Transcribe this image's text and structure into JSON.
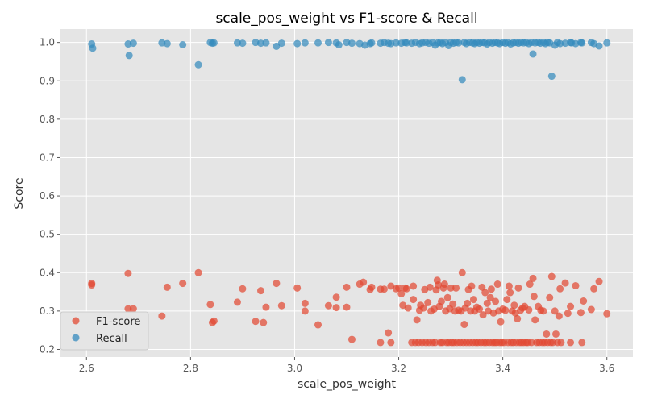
{
  "chart_data": {
    "type": "scatter",
    "title": "scale_pos_weight vs F1-score & Recall",
    "xlabel": "scale_pos_weight",
    "ylabel": "Score",
    "xlim": [
      2.55,
      3.65
    ],
    "ylim": [
      0.18,
      1.035
    ],
    "xticks": [
      "2.6",
      "2.8",
      "3.0",
      "3.2",
      "3.4",
      "3.6"
    ],
    "yticks": [
      "0.2",
      "0.3",
      "0.4",
      "0.5",
      "0.6",
      "0.7",
      "0.8",
      "0.9",
      "1.0"
    ],
    "grid": true,
    "legend_position": "lower-left",
    "colors": {
      "background": "#e5e5e5",
      "grid": "#ffffff",
      "f1": "#e24a33",
      "recall": "#348abd"
    },
    "series": [
      {
        "name": "F1-score",
        "points": [
          [
            2.61,
            0.372
          ],
          [
            2.61,
            0.368
          ],
          [
            2.68,
            0.398
          ],
          [
            2.68,
            0.306
          ],
          [
            2.69,
            0.306
          ],
          [
            2.745,
            0.287
          ],
          [
            2.755,
            0.362
          ],
          [
            2.785,
            0.372
          ],
          [
            2.815,
            0.4
          ],
          [
            2.838,
            0.317
          ],
          [
            2.842,
            0.27
          ],
          [
            2.845,
            0.274
          ],
          [
            2.89,
            0.323
          ],
          [
            2.9,
            0.358
          ],
          [
            2.925,
            0.273
          ],
          [
            2.935,
            0.353
          ],
          [
            2.94,
            0.27
          ],
          [
            2.945,
            0.31
          ],
          [
            2.965,
            0.372
          ],
          [
            2.975,
            0.314
          ],
          [
            3.005,
            0.36
          ],
          [
            3.02,
            0.32
          ],
          [
            3.02,
            0.3
          ],
          [
            3.045,
            0.264
          ],
          [
            3.065,
            0.314
          ],
          [
            3.08,
            0.336
          ],
          [
            3.08,
            0.309
          ],
          [
            3.1,
            0.362
          ],
          [
            3.1,
            0.31
          ],
          [
            3.11,
            0.226
          ],
          [
            3.125,
            0.37
          ],
          [
            3.132,
            0.375
          ],
          [
            3.145,
            0.356
          ],
          [
            3.148,
            0.362
          ],
          [
            3.165,
            0.357
          ],
          [
            3.165,
            0.218
          ],
          [
            3.172,
            0.357
          ],
          [
            3.18,
            0.243
          ],
          [
            3.185,
            0.365
          ],
          [
            3.185,
            0.218
          ],
          [
            3.195,
            0.358
          ],
          [
            3.2,
            0.36
          ],
          [
            3.205,
            0.345
          ],
          [
            3.208,
            0.315
          ],
          [
            3.212,
            0.36
          ],
          [
            3.215,
            0.358
          ],
          [
            3.218,
            0.308
          ],
          [
            3.225,
            0.218
          ],
          [
            3.228,
            0.365
          ],
          [
            3.228,
            0.33
          ],
          [
            3.232,
            0.218
          ],
          [
            3.235,
            0.277
          ],
          [
            3.238,
            0.218
          ],
          [
            3.24,
            0.302
          ],
          [
            3.242,
            0.315
          ],
          [
            3.245,
            0.218
          ],
          [
            3.248,
            0.308
          ],
          [
            3.25,
            0.356
          ],
          [
            3.252,
            0.218
          ],
          [
            3.256,
            0.322
          ],
          [
            3.258,
            0.218
          ],
          [
            3.26,
            0.362
          ],
          [
            3.262,
            0.3
          ],
          [
            3.265,
            0.218
          ],
          [
            3.268,
            0.305
          ],
          [
            3.27,
            0.218
          ],
          [
            3.272,
            0.355
          ],
          [
            3.274,
            0.38
          ],
          [
            3.276,
            0.368
          ],
          [
            3.278,
            0.312
          ],
          [
            3.28,
            0.218
          ],
          [
            3.282,
            0.325
          ],
          [
            3.284,
            0.218
          ],
          [
            3.286,
            0.36
          ],
          [
            3.288,
            0.37
          ],
          [
            3.29,
            0.3
          ],
          [
            3.292,
            0.218
          ],
          [
            3.294,
            0.335
          ],
          [
            3.296,
            0.218
          ],
          [
            3.298,
            0.306
          ],
          [
            3.3,
            0.36
          ],
          [
            3.302,
            0.218
          ],
          [
            3.304,
            0.318
          ],
          [
            3.306,
            0.218
          ],
          [
            3.308,
            0.3
          ],
          [
            3.31,
            0.36
          ],
          [
            3.312,
            0.218
          ],
          [
            3.315,
            0.302
          ],
          [
            3.318,
            0.218
          ],
          [
            3.32,
            0.3
          ],
          [
            3.322,
            0.4
          ],
          [
            3.324,
            0.218
          ],
          [
            3.326,
            0.265
          ],
          [
            3.328,
            0.308
          ],
          [
            3.33,
            0.218
          ],
          [
            3.332,
            0.32
          ],
          [
            3.334,
            0.356
          ],
          [
            3.336,
            0.218
          ],
          [
            3.338,
            0.3
          ],
          [
            3.34,
            0.365
          ],
          [
            3.342,
            0.218
          ],
          [
            3.344,
            0.33
          ],
          [
            3.346,
            0.3
          ],
          [
            3.348,
            0.218
          ],
          [
            3.35,
            0.31
          ],
          [
            3.352,
            0.218
          ],
          [
            3.355,
            0.305
          ],
          [
            3.358,
            0.218
          ],
          [
            3.36,
            0.362
          ],
          [
            3.362,
            0.29
          ],
          [
            3.364,
            0.218
          ],
          [
            3.366,
            0.348
          ],
          [
            3.368,
            0.218
          ],
          [
            3.37,
            0.32
          ],
          [
            3.372,
            0.3
          ],
          [
            3.374,
            0.218
          ],
          [
            3.376,
            0.335
          ],
          [
            3.378,
            0.357
          ],
          [
            3.38,
            0.218
          ],
          [
            3.382,
            0.295
          ],
          [
            3.384,
            0.218
          ],
          [
            3.386,
            0.325
          ],
          [
            3.388,
            0.218
          ],
          [
            3.39,
            0.37
          ],
          [
            3.392,
            0.3
          ],
          [
            3.394,
            0.218
          ],
          [
            3.396,
            0.272
          ],
          [
            3.398,
            0.218
          ],
          [
            3.4,
            0.305
          ],
          [
            3.402,
            0.218
          ],
          [
            3.405,
            0.302
          ],
          [
            3.408,
            0.33
          ],
          [
            3.41,
            0.218
          ],
          [
            3.412,
            0.365
          ],
          [
            3.414,
            0.348
          ],
          [
            3.416,
            0.218
          ],
          [
            3.418,
            0.3
          ],
          [
            3.42,
            0.218
          ],
          [
            3.422,
            0.315
          ],
          [
            3.424,
            0.295
          ],
          [
            3.426,
            0.218
          ],
          [
            3.428,
            0.28
          ],
          [
            3.43,
            0.36
          ],
          [
            3.432,
            0.218
          ],
          [
            3.434,
            0.302
          ],
          [
            3.436,
            0.218
          ],
          [
            3.438,
            0.308
          ],
          [
            3.44,
            0.218
          ],
          [
            3.442,
            0.312
          ],
          [
            3.445,
            0.218
          ],
          [
            3.448,
            0.218
          ],
          [
            3.45,
            0.303
          ],
          [
            3.452,
            0.37
          ],
          [
            3.455,
            0.218
          ],
          [
            3.458,
            0.385
          ],
          [
            3.46,
            0.338
          ],
          [
            3.462,
            0.277
          ],
          [
            3.465,
            0.218
          ],
          [
            3.468,
            0.312
          ],
          [
            3.47,
            0.218
          ],
          [
            3.473,
            0.302
          ],
          [
            3.476,
            0.218
          ],
          [
            3.478,
            0.3
          ],
          [
            3.48,
            0.218
          ],
          [
            3.484,
            0.24
          ],
          [
            3.486,
            0.218
          ],
          [
            3.49,
            0.335
          ],
          [
            3.492,
            0.218
          ],
          [
            3.494,
            0.39
          ],
          [
            3.496,
            0.218
          ],
          [
            3.5,
            0.3
          ],
          [
            3.502,
            0.24
          ],
          [
            3.505,
            0.218
          ],
          [
            3.508,
            0.287
          ],
          [
            3.51,
            0.358
          ],
          [
            3.512,
            0.218
          ],
          [
            3.52,
            0.373
          ],
          [
            3.525,
            0.294
          ],
          [
            3.53,
            0.312
          ],
          [
            3.53,
            0.218
          ],
          [
            3.54,
            0.366
          ],
          [
            3.55,
            0.296
          ],
          [
            3.552,
            0.218
          ],
          [
            3.555,
            0.326
          ],
          [
            3.57,
            0.304
          ],
          [
            3.575,
            0.358
          ],
          [
            3.585,
            0.377
          ],
          [
            3.6,
            0.293
          ]
        ]
      },
      {
        "name": "Recall",
        "points": [
          [
            2.61,
            0.996
          ],
          [
            2.612,
            0.985
          ],
          [
            2.68,
            0.996
          ],
          [
            2.682,
            0.966
          ],
          [
            2.69,
            0.998
          ],
          [
            2.745,
            0.999
          ],
          [
            2.755,
            0.997
          ],
          [
            2.785,
            0.994
          ],
          [
            2.815,
            0.942
          ],
          [
            2.838,
            1.0
          ],
          [
            2.842,
            0.998
          ],
          [
            2.845,
            0.999
          ],
          [
            2.89,
            0.999
          ],
          [
            2.9,
            0.998
          ],
          [
            2.925,
            1.0
          ],
          [
            2.935,
            0.998
          ],
          [
            2.945,
            0.999
          ],
          [
            2.965,
            0.99
          ],
          [
            2.975,
            0.998
          ],
          [
            3.005,
            0.997
          ],
          [
            3.02,
            0.999
          ],
          [
            3.045,
            0.999
          ],
          [
            3.065,
            1.0
          ],
          [
            3.08,
            0.999
          ],
          [
            3.085,
            0.994
          ],
          [
            3.1,
            1.0
          ],
          [
            3.11,
            0.998
          ],
          [
            3.125,
            0.997
          ],
          [
            3.135,
            0.993
          ],
          [
            3.145,
            0.997
          ],
          [
            3.148,
            0.999
          ],
          [
            3.165,
            0.998
          ],
          [
            3.172,
            1.0
          ],
          [
            3.18,
            0.998
          ],
          [
            3.185,
            0.997
          ],
          [
            3.195,
            0.999
          ],
          [
            3.205,
            0.998
          ],
          [
            3.212,
            1.0
          ],
          [
            3.215,
            0.999
          ],
          [
            3.225,
            0.998
          ],
          [
            3.232,
            1.0
          ],
          [
            3.24,
            0.997
          ],
          [
            3.245,
            0.999
          ],
          [
            3.252,
            1.0
          ],
          [
            3.258,
            0.998
          ],
          [
            3.265,
            1.0
          ],
          [
            3.27,
            0.993
          ],
          [
            3.275,
            0.999
          ],
          [
            3.28,
            1.0
          ],
          [
            3.284,
            0.997
          ],
          [
            3.29,
            1.0
          ],
          [
            3.296,
            0.992
          ],
          [
            3.3,
            1.0
          ],
          [
            3.305,
            0.998
          ],
          [
            3.31,
            1.0
          ],
          [
            3.315,
            0.999
          ],
          [
            3.322,
            0.903
          ],
          [
            3.326,
            1.0
          ],
          [
            3.33,
            0.997
          ],
          [
            3.336,
            1.0
          ],
          [
            3.342,
            0.999
          ],
          [
            3.346,
            0.997
          ],
          [
            3.35,
            1.0
          ],
          [
            3.355,
            0.998
          ],
          [
            3.36,
            1.0
          ],
          [
            3.365,
            0.999
          ],
          [
            3.37,
            0.996
          ],
          [
            3.374,
            1.0
          ],
          [
            3.38,
            0.998
          ],
          [
            3.385,
            1.0
          ],
          [
            3.39,
            0.999
          ],
          [
            3.394,
            0.997
          ],
          [
            3.4,
            1.0
          ],
          [
            3.405,
            0.998
          ],
          [
            3.41,
            1.0
          ],
          [
            3.415,
            0.996
          ],
          [
            3.42,
            0.999
          ],
          [
            3.425,
            1.0
          ],
          [
            3.43,
            0.998
          ],
          [
            3.435,
            1.0
          ],
          [
            3.44,
            0.999
          ],
          [
            3.445,
            1.0
          ],
          [
            3.45,
            0.997
          ],
          [
            3.455,
            1.0
          ],
          [
            3.458,
            0.97
          ],
          [
            3.462,
            0.999
          ],
          [
            3.468,
            1.0
          ],
          [
            3.472,
            0.998
          ],
          [
            3.478,
            1.0
          ],
          [
            3.482,
            0.997
          ],
          [
            3.486,
            1.0
          ],
          [
            3.49,
            0.999
          ],
          [
            3.494,
            0.912
          ],
          [
            3.5,
            0.993
          ],
          [
            3.505,
            1.0
          ],
          [
            3.51,
            0.997
          ],
          [
            3.52,
            0.998
          ],
          [
            3.53,
            1.0
          ],
          [
            3.532,
            0.999
          ],
          [
            3.54,
            0.997
          ],
          [
            3.55,
            1.0
          ],
          [
            3.552,
            0.999
          ],
          [
            3.57,
            1.0
          ],
          [
            3.575,
            0.997
          ],
          [
            3.585,
            0.991
          ],
          [
            3.6,
            0.999
          ]
        ]
      }
    ]
  }
}
